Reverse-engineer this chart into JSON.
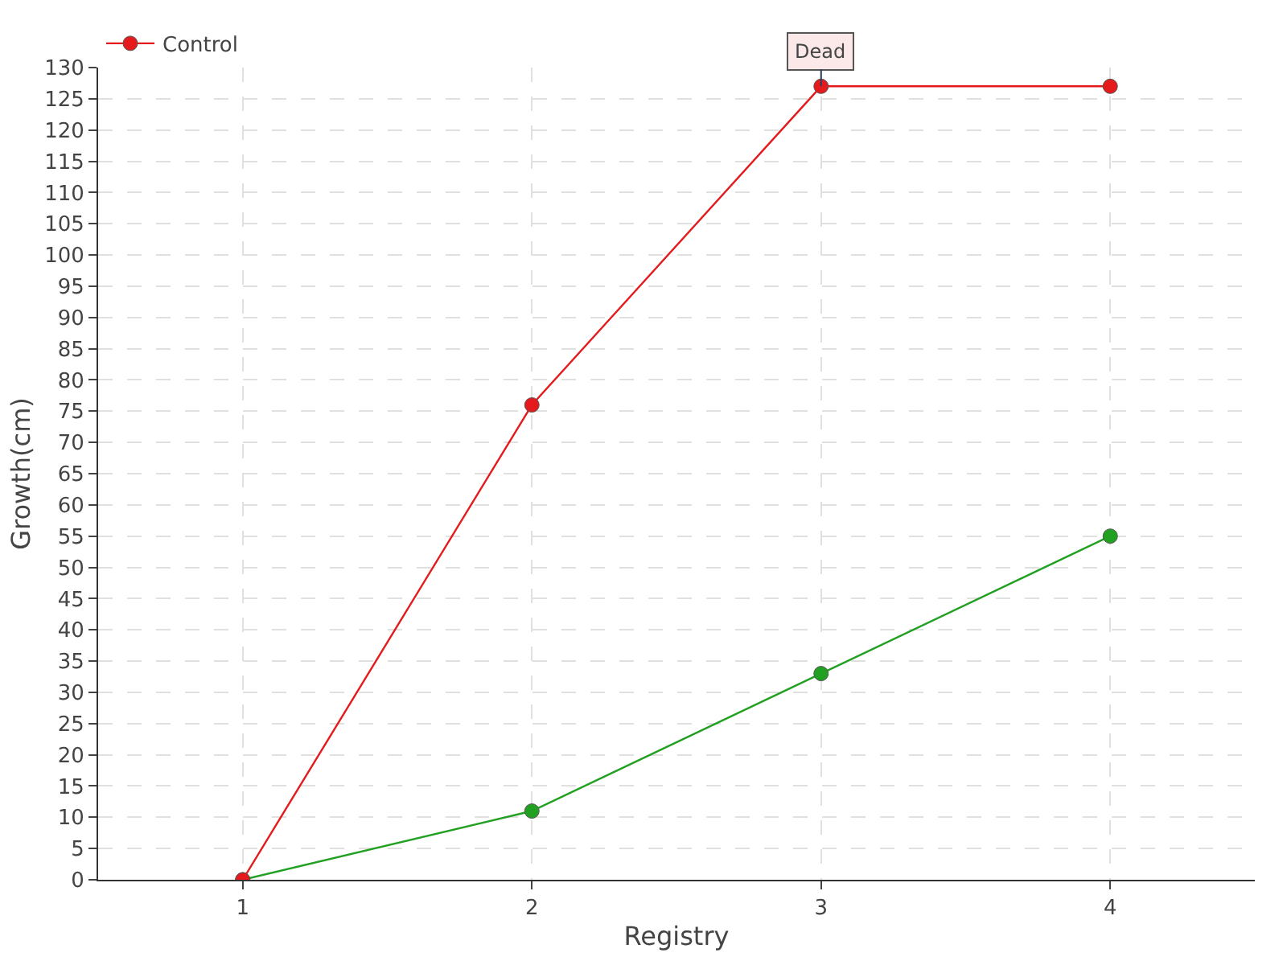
{
  "chart_data": {
    "type": "line",
    "xlabel": "Registry",
    "ylabel": "Growth(cm)",
    "x": [
      1,
      2,
      3,
      4
    ],
    "xlim": [
      0.5,
      4.5
    ],
    "xticks": [
      1,
      2,
      3,
      4
    ],
    "ylim": [
      0,
      130
    ],
    "yticks": [
      0,
      5,
      10,
      15,
      20,
      25,
      30,
      35,
      40,
      45,
      50,
      55,
      60,
      65,
      70,
      75,
      80,
      85,
      90,
      95,
      100,
      105,
      110,
      115,
      120,
      125,
      130
    ],
    "series": [
      {
        "color": "#22a022",
        "values": [
          0,
          11,
          33,
          55
        ]
      },
      {
        "name": "Control",
        "color": "#e41a1c",
        "values": [
          0,
          76,
          127,
          127
        ]
      }
    ],
    "annotations": [
      {
        "text": "Dead",
        "x": 3,
        "y": 127
      }
    ],
    "grid": true,
    "legend": "top left",
    "marker": "circle",
    "line_style": "solid"
  }
}
